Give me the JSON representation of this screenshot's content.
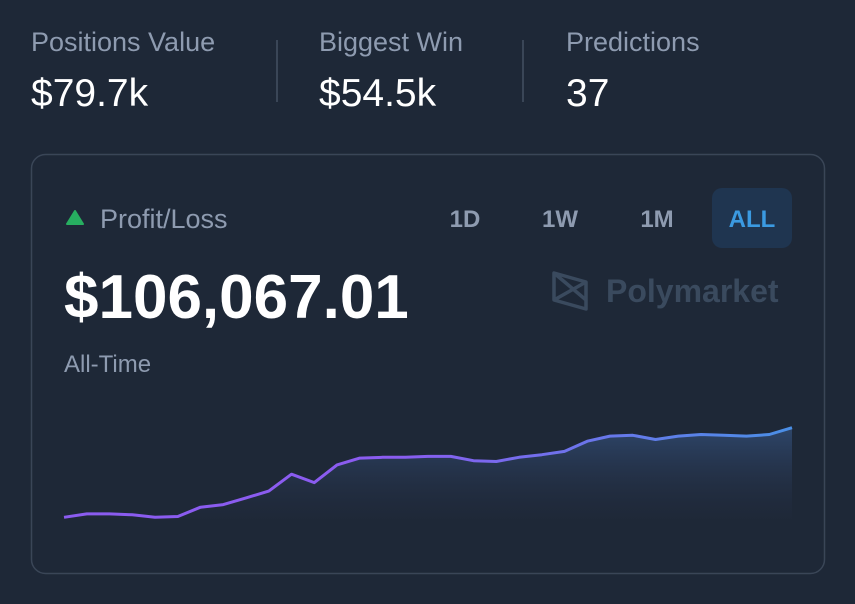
{
  "stats": [
    {
      "label": "Positions Value",
      "value": "$79.7k"
    },
    {
      "label": "Biggest Win",
      "value": "$54.5k"
    },
    {
      "label": "Predictions",
      "value": "37"
    }
  ],
  "card": {
    "title": "Profit/Loss",
    "timeframes": [
      "1D",
      "1W",
      "1M",
      "ALL"
    ],
    "active_index": 3,
    "amount": "$106,067.01",
    "period": "All-Time",
    "brand": "Polymarket"
  },
  "chart_data": {
    "type": "area",
    "values": [
      0,
      4000,
      4000,
      3000,
      0,
      1000,
      12000,
      15000,
      23000,
      31000,
      51000,
      41000,
      62000,
      70000,
      71000,
      71000,
      72000,
      72000,
      67000,
      66000,
      71000,
      74000,
      78000,
      90000,
      96000,
      97000,
      92000,
      96000,
      98000,
      97000,
      96000,
      98000,
      106000
    ],
    "ylim": [
      -2000,
      108000
    ],
    "colors": [
      "#8b5cf0",
      "#4a8fe6"
    ]
  }
}
